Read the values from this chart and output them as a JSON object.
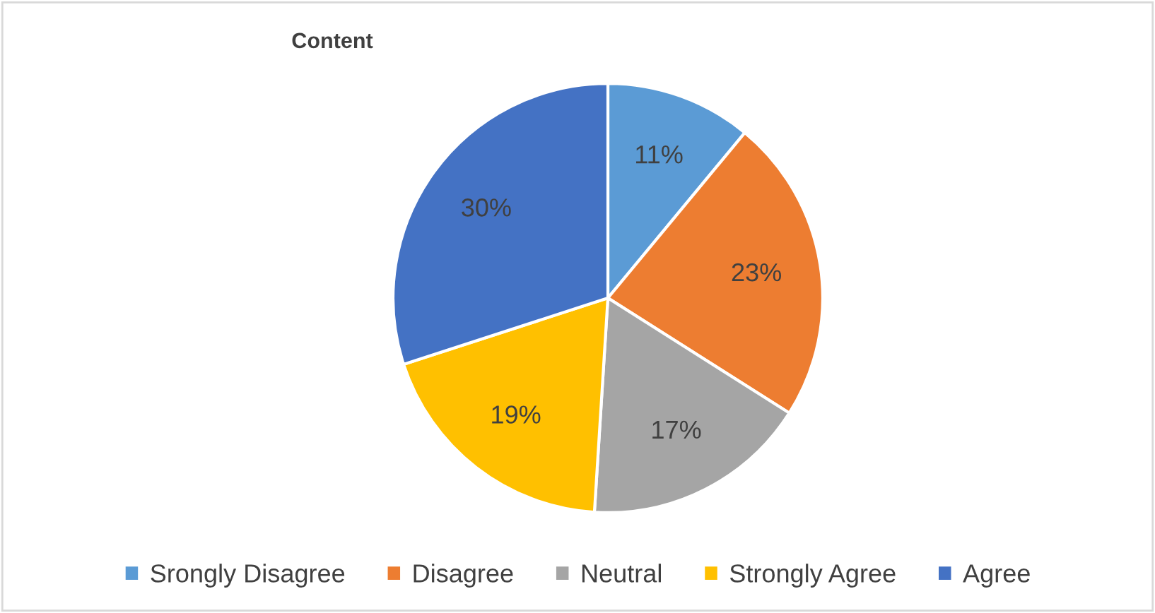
{
  "chart_data": {
    "type": "pie",
    "title": "Content",
    "categories": [
      "Srongly Disagree",
      "Disagree",
      "Neutral",
      "Strongly Agree",
      "Agree"
    ],
    "values": [
      11,
      23,
      17,
      19,
      30
    ],
    "colors": [
      "#5b9bd5",
      "#ed7d31",
      "#a5a5a5",
      "#ffc000",
      "#4472c4"
    ],
    "value_labels": [
      "11%",
      "23%",
      "17%",
      "19%",
      "30%"
    ],
    "legend": "bottom"
  }
}
